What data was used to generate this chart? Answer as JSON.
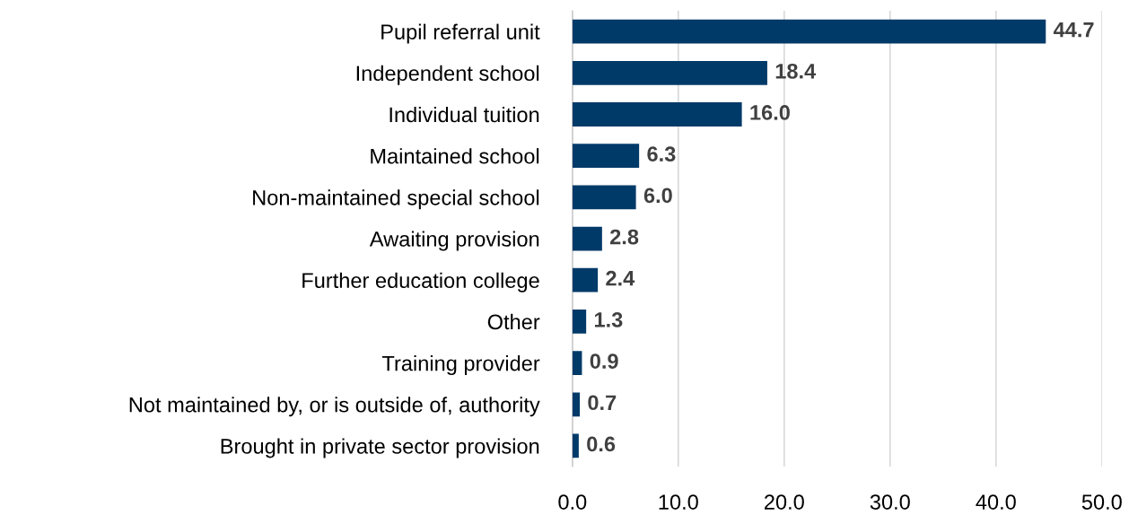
{
  "chart_data": {
    "type": "bar",
    "orientation": "horizontal",
    "categories": [
      "Pupil referral unit",
      "Independent school",
      "Individual tuition",
      "Maintained school",
      "Non-maintained special school",
      "Awaiting provision",
      "Further education college",
      "Other",
      "Training provider",
      "Not maintained by, or is outside of, authority",
      "Brought in private sector provision"
    ],
    "values": [
      44.7,
      18.4,
      16.0,
      6.3,
      6.0,
      2.8,
      2.4,
      1.3,
      0.9,
      0.7,
      0.6
    ],
    "value_labels": [
      "44.7",
      "18.4",
      "16.0",
      "6.3",
      "6.0",
      "2.8",
      "2.4",
      "1.3",
      "0.9",
      "0.7",
      "0.6"
    ],
    "color": "#003a69",
    "xlim": [
      0,
      50
    ],
    "xticks": [
      {
        "value": 0,
        "label": "0.0"
      },
      {
        "value": 10,
        "label": "10.0"
      },
      {
        "value": 20,
        "label": "20.0"
      },
      {
        "value": 30,
        "label": "30.0"
      },
      {
        "value": 40,
        "label": "40.0"
      },
      {
        "value": 50,
        "label": "50.0"
      }
    ],
    "grid": "x",
    "legend": false
  }
}
